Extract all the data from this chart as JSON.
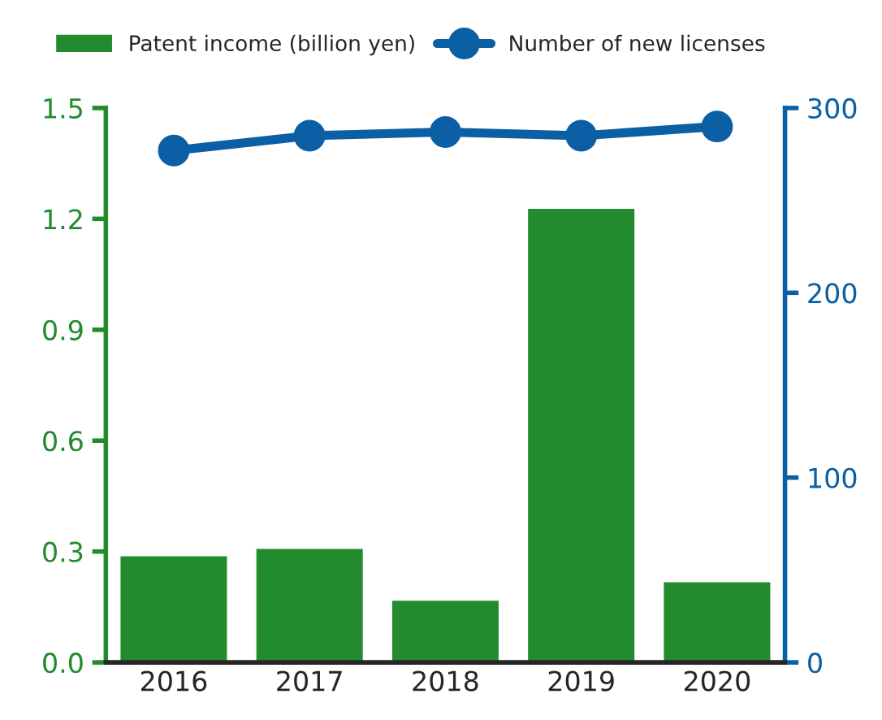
{
  "chart_data": {
    "type": "bar",
    "categories": [
      "2016",
      "2017",
      "2018",
      "2019",
      "2020"
    ],
    "series": [
      {
        "name": "Patent income (billion yen)",
        "color": "#228b2e",
        "values": [
          0.29,
          0.31,
          0.17,
          1.23,
          0.22
        ]
      },
      {
        "name": "Number of new licenses",
        "type": "line",
        "axis": "y2",
        "color": "#0b5fa5",
        "values": [
          277,
          285,
          287,
          285,
          290
        ]
      }
    ],
    "ylim": [
      0,
      1.5
    ],
    "yticks": [
      {
        "value": 0,
        "label": "0.0"
      },
      0.3,
      0.6,
      0.9,
      1.2,
      1.5
    ],
    "y2lim": [
      0,
      300
    ],
    "y2ticks": [
      0,
      100,
      200,
      300
    ],
    "marker": "circle",
    "line_style": "solid",
    "grid": false,
    "legend": "top"
  }
}
